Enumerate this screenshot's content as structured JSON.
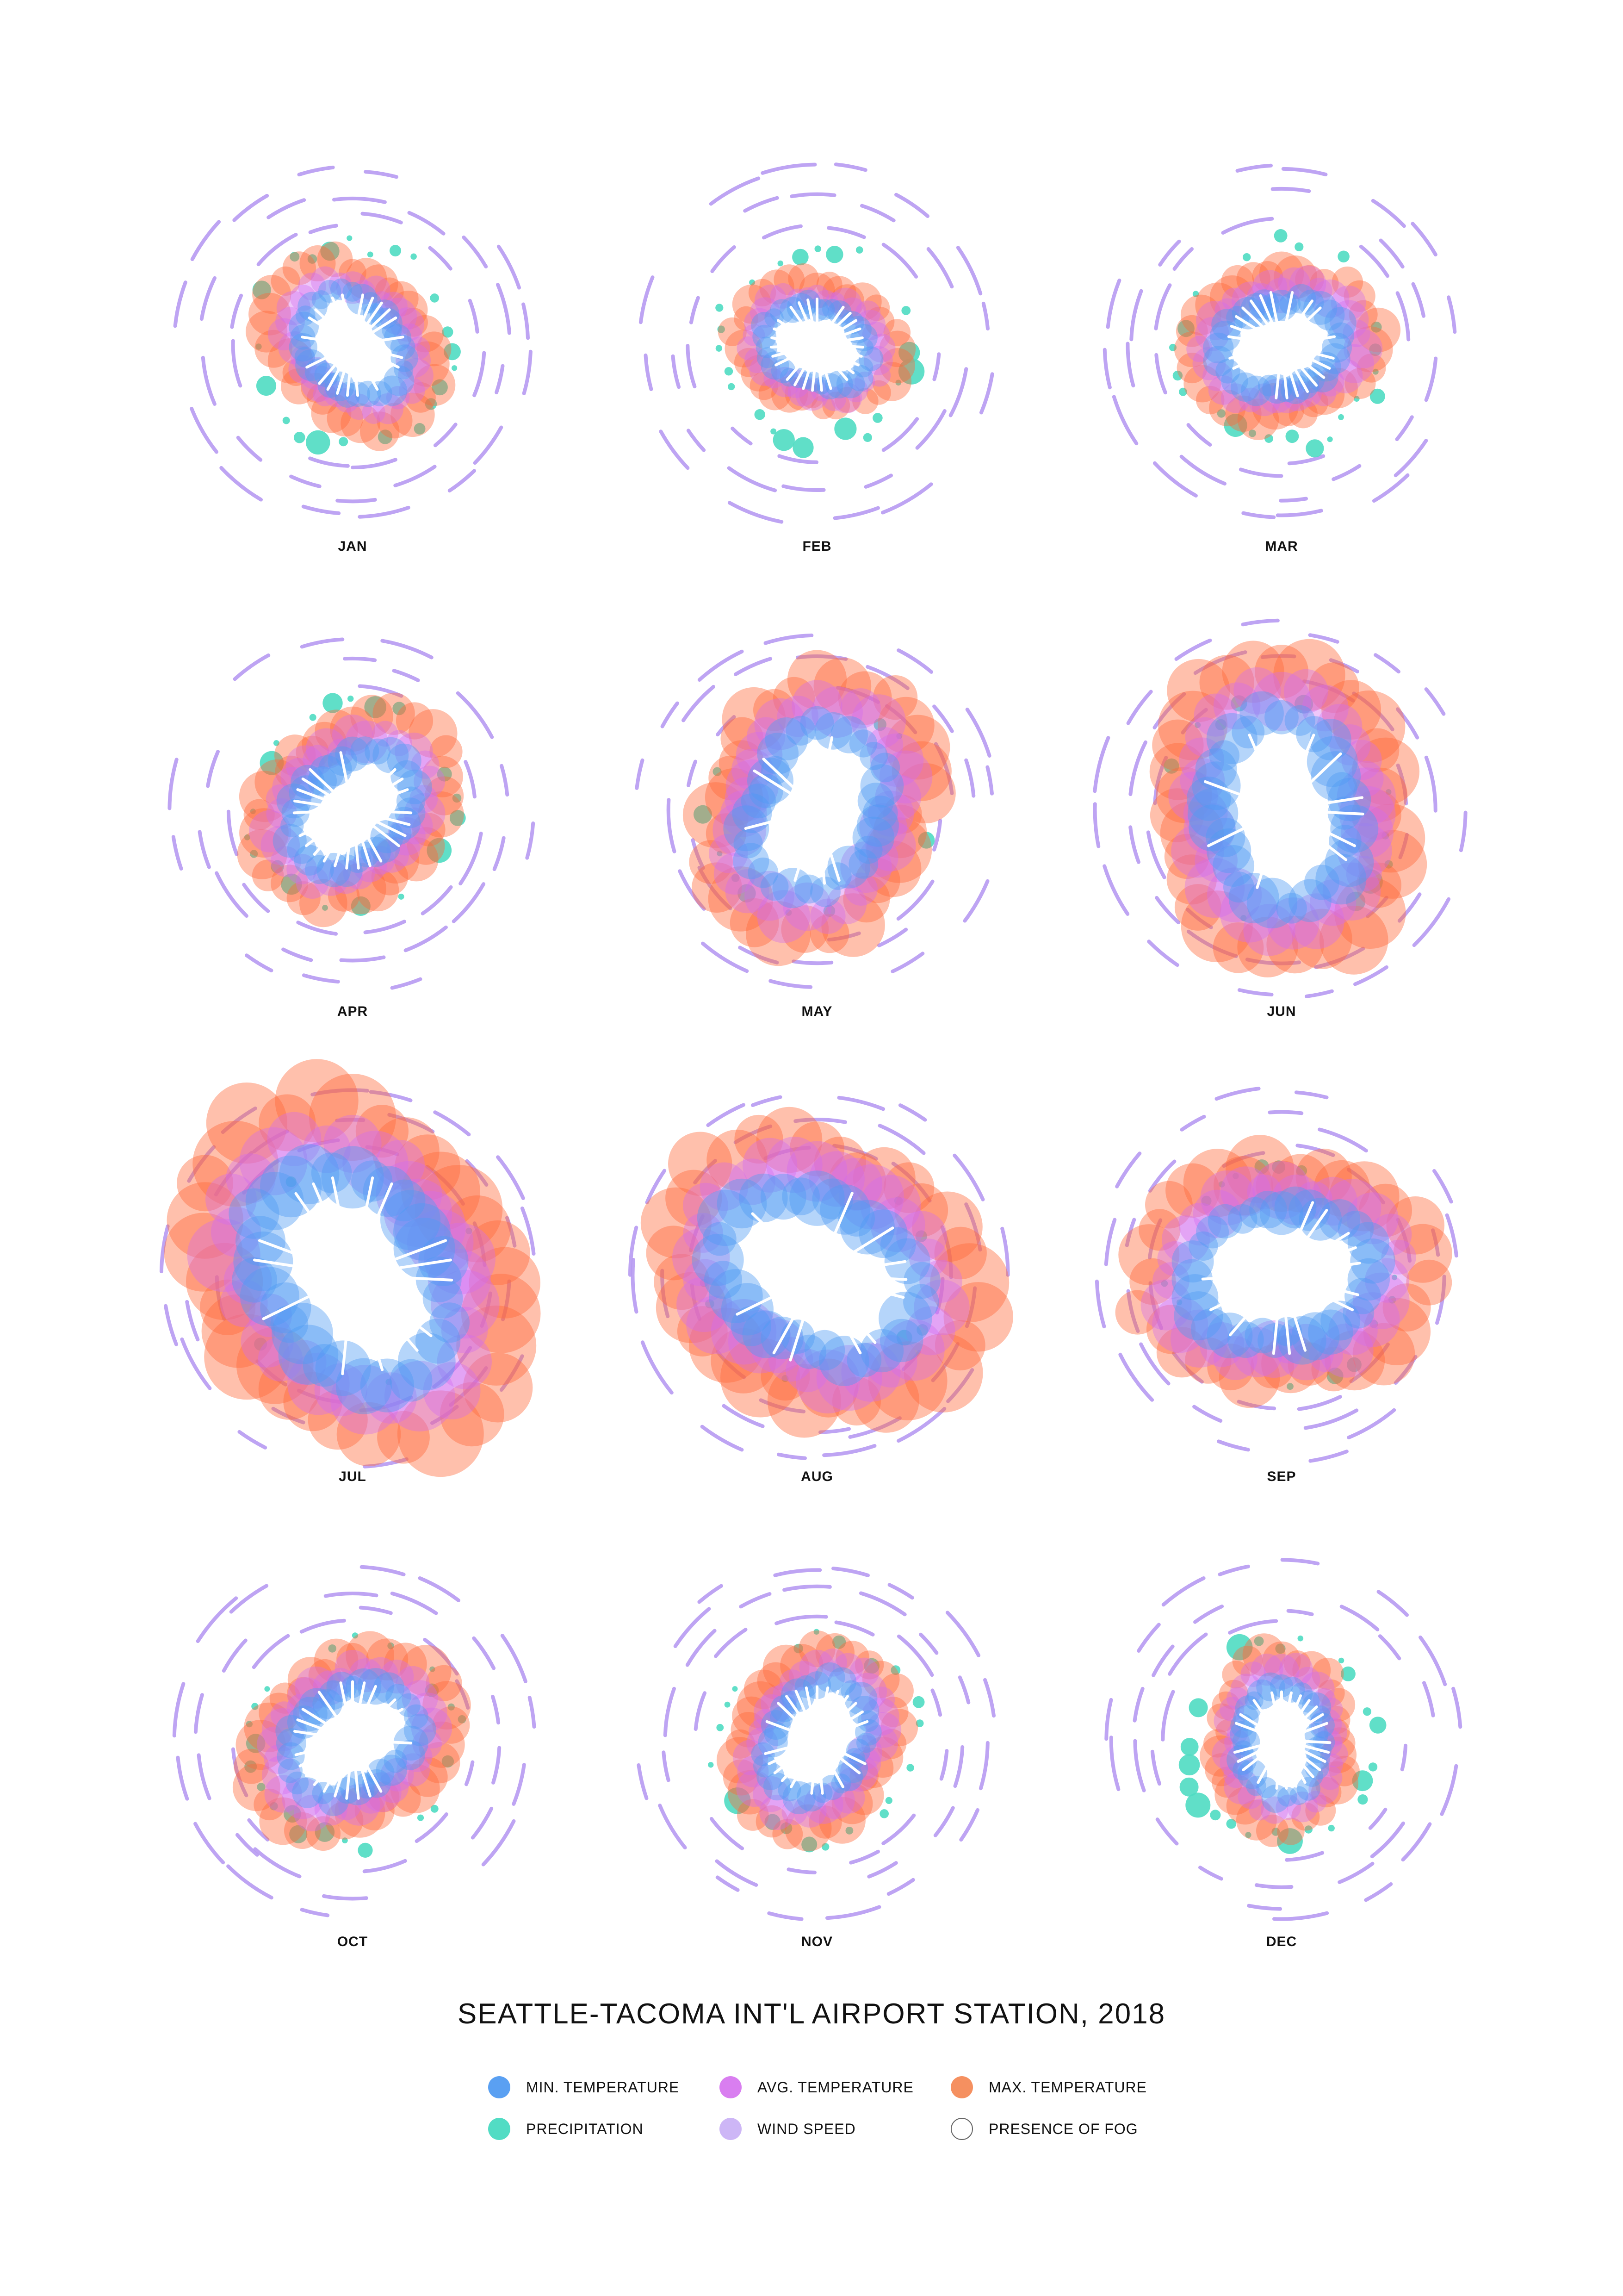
{
  "chart_data": {
    "type": "radial-small-multiples",
    "title": "SEATTLE-TACOMA INT'L AIRPORT STATION, 2018",
    "months": [
      "JAN",
      "FEB",
      "MAR",
      "APR",
      "MAY",
      "JUN",
      "JUL",
      "AUG",
      "SEP",
      "OCT",
      "NOV",
      "DEC"
    ],
    "approx_monthly_size": [
      1.0,
      0.9,
      1.05,
      1.15,
      1.45,
      1.6,
      1.95,
      1.75,
      1.55,
      1.15,
      1.05,
      0.95
    ],
    "legend": [
      {
        "label": "MIN. TEMPERATURE",
        "color": "#5aa0f2",
        "outline": false
      },
      {
        "label": "AVG. TEMPERATURE",
        "color": "#d97ef0",
        "outline": false
      },
      {
        "label": "MAX. TEMPERATURE",
        "color": "#f59060",
        "outline": false
      },
      {
        "label": "PRECIPITATION",
        "color": "#52dcc4",
        "outline": false
      },
      {
        "label": "WIND SPEED",
        "color": "#cdb6f6",
        "outline": false
      },
      {
        "label": "PRESENCE OF FOG",
        "color": "#ffffff",
        "outline": true
      }
    ],
    "colors": {
      "min": "#4f9cf4",
      "avg": "#d36cf0",
      "max": "#ff6a3a",
      "precip": "#4fdcc2",
      "wind": "#b79af2",
      "fog": "#ffffff"
    }
  }
}
